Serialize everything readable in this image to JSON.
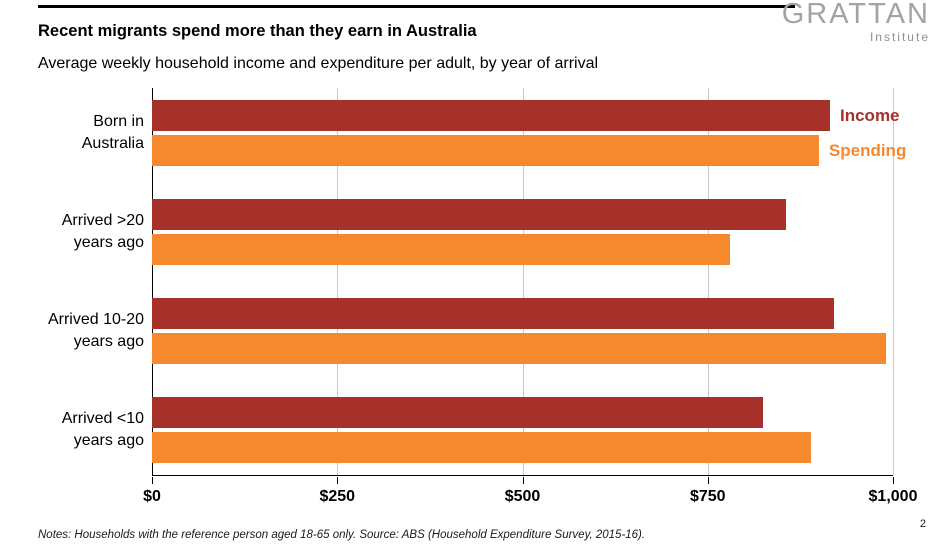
{
  "page": {
    "title": "Recent migrants spend more than they earn in Australia",
    "subtitle": "Average weekly household income and expenditure per adult, by year of arrival",
    "logo": {
      "name": "GRATTAN",
      "subtitle": "Institute"
    },
    "notes": "Notes: Households with the reference person aged 18-65 only. Source: ABS (Household Expenditure Survey, 2015-16).",
    "page_number": "2"
  },
  "chart_data": {
    "type": "bar",
    "orientation": "horizontal",
    "title": "Recent migrants spend more than they earn in Australia",
    "subtitle": "Average weekly household income and expenditure per adult, by year of arrival",
    "categories": [
      "Born in\nAustralia",
      "Arrived >20\nyears ago",
      "Arrived 10-20\nyears ago",
      "Arrived <10\nyears ago"
    ],
    "series": [
      {
        "name": "Income",
        "color": "#A5312A",
        "values": [
          915,
          855,
          920,
          825
        ]
      },
      {
        "name": "Spending",
        "color": "#F6892D",
        "values": [
          900,
          780,
          990,
          890
        ]
      }
    ],
    "xlabel": "",
    "ylabel": "",
    "xlim": [
      0,
      1000
    ],
    "xticks": [
      0,
      250,
      500,
      750,
      1000
    ],
    "xtick_labels": [
      "$0",
      "$250",
      "$500",
      "$750",
      "$1,000"
    ],
    "grid": true,
    "legend_position": "right of first category bars"
  }
}
